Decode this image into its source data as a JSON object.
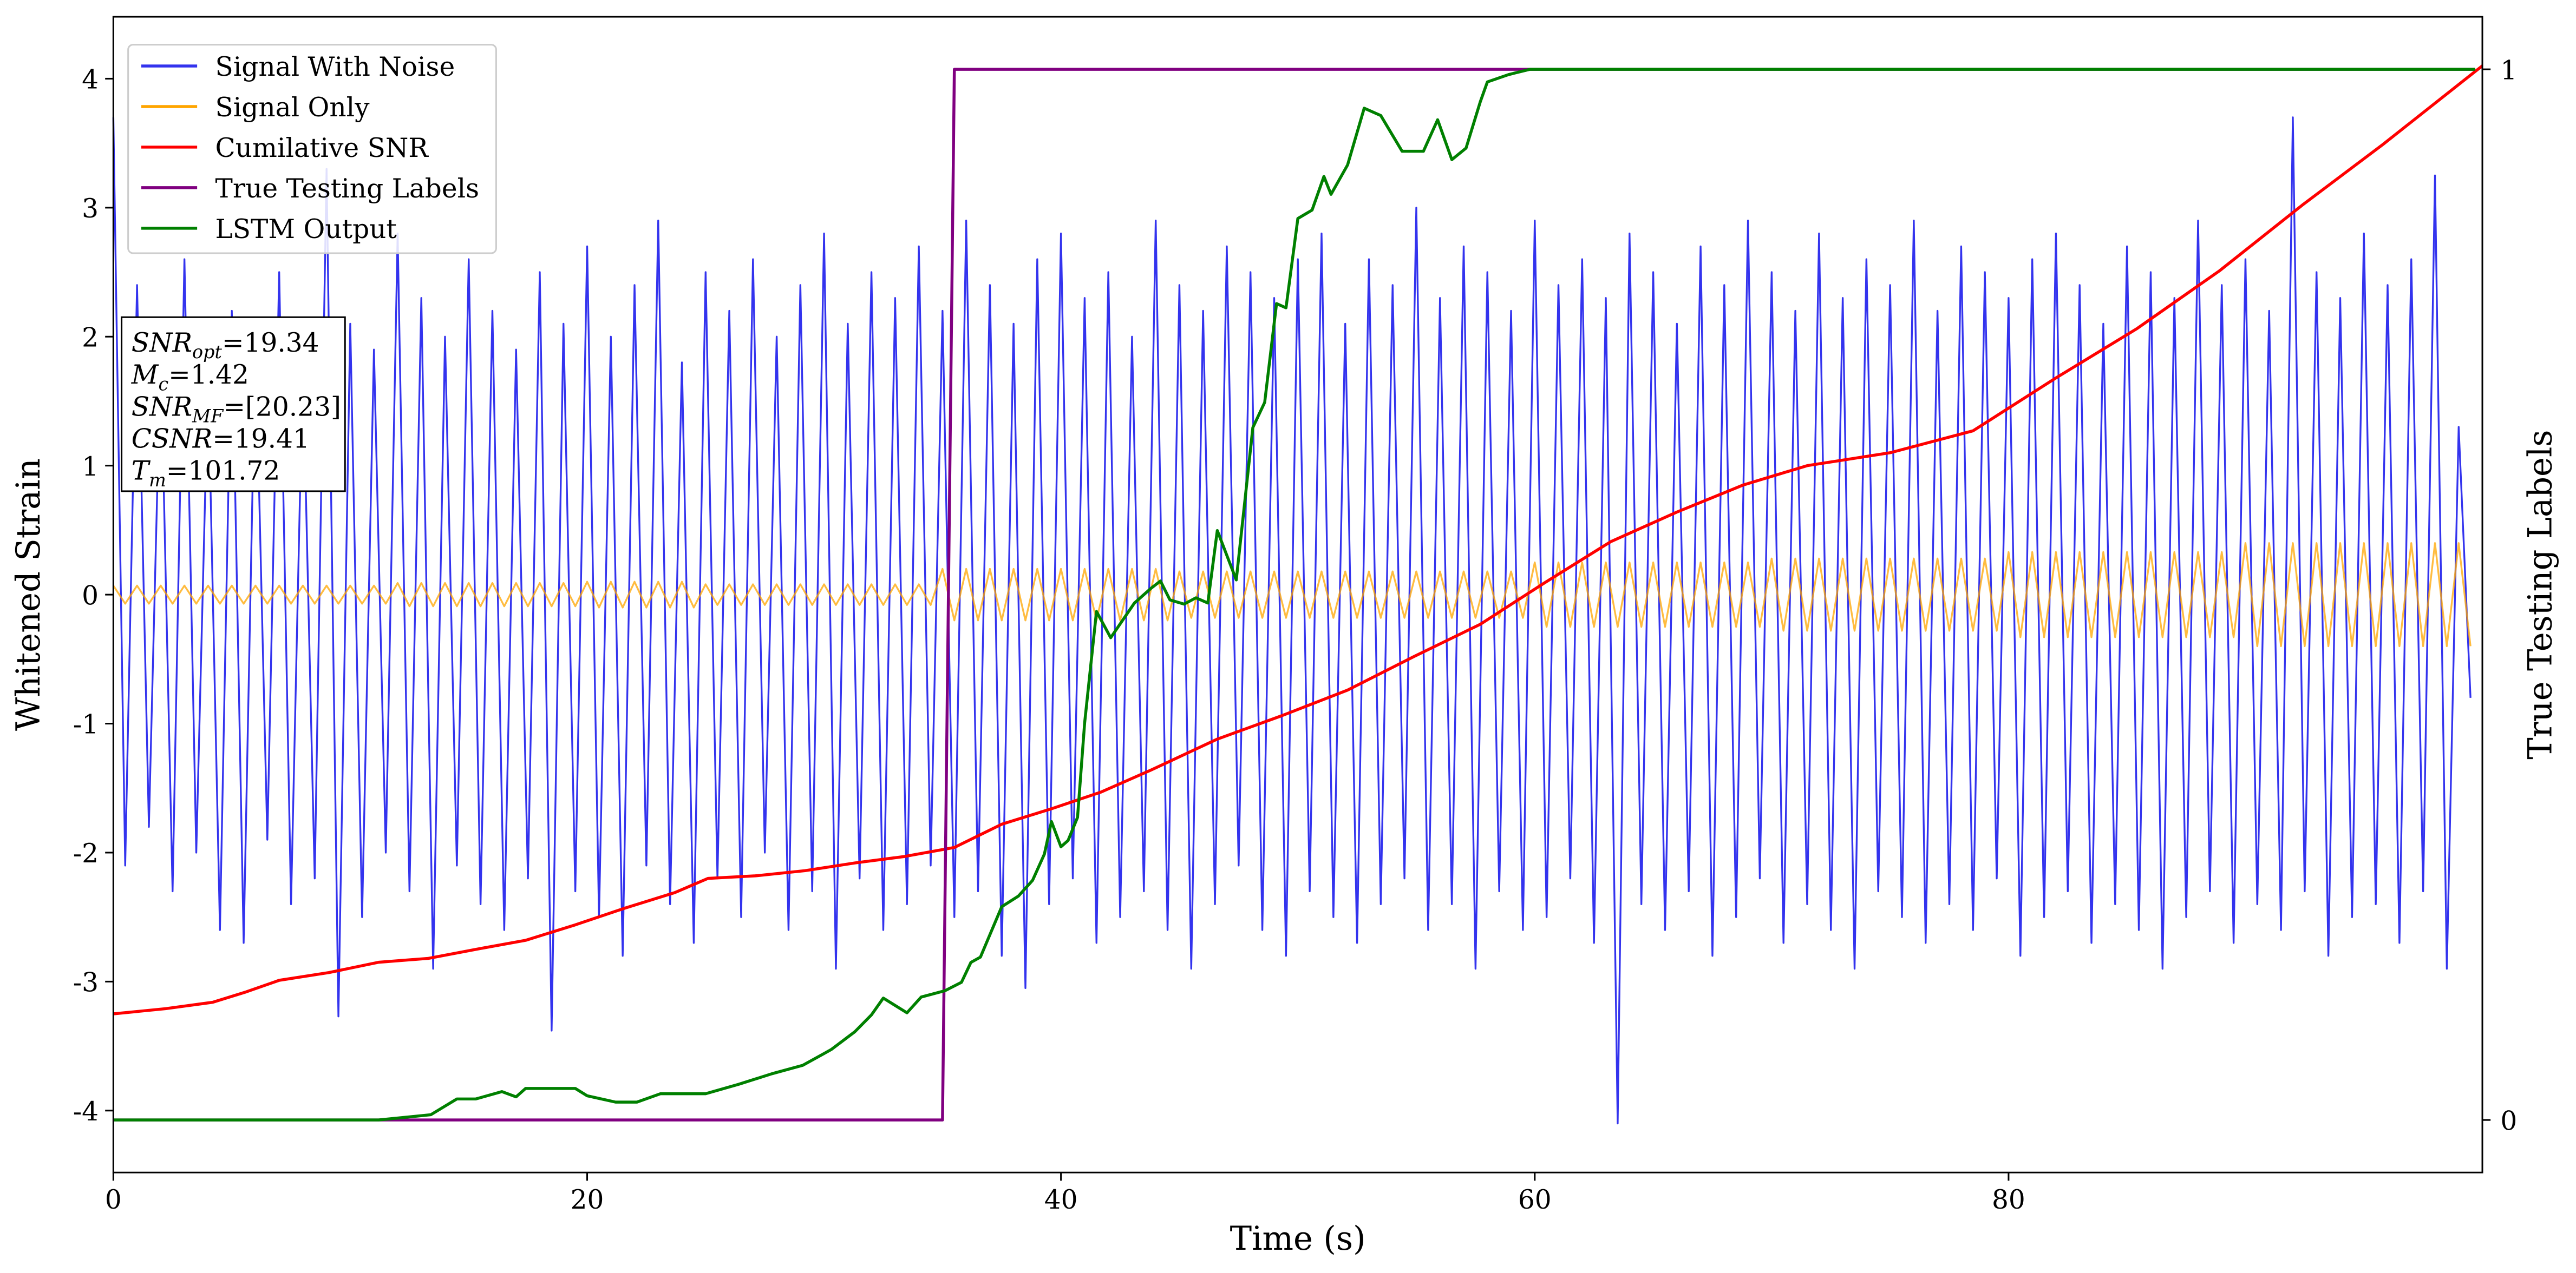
{
  "chart_data": {
    "type": "line",
    "xlabel": "Time (s)",
    "ylabel": "Whitened Strain",
    "y2label": "True Testing Labels",
    "xlim": [
      0,
      100
    ],
    "ylim": [
      -4.48,
      4.48
    ],
    "y2lim": [
      -0.05,
      1.05
    ],
    "xticks": [
      0,
      20,
      40,
      60,
      80
    ],
    "yticks": [
      -4,
      -3,
      -2,
      -1,
      0,
      1,
      2,
      3,
      4
    ],
    "y2ticks": [
      0,
      1
    ],
    "legend": "upper left",
    "annotation": [
      {
        "main": "SNR",
        "sub": "opt",
        "rest": "=19.34"
      },
      {
        "main": "M",
        "sub": "c",
        "rest": "=1.42"
      },
      {
        "main": "SNR",
        "sub": "MF",
        "rest": "=[20.23]"
      },
      {
        "main": "CSNR",
        "sub": null,
        "rest": "=19.41"
      },
      {
        "main": "T",
        "sub": "m",
        "rest": "=101.72"
      }
    ],
    "x": [
      0,
      0.5,
      1,
      1.5,
      2,
      2.5,
      3,
      3.5,
      4,
      4.5,
      5,
      5.5,
      6,
      6.5,
      7,
      7.5,
      8,
      8.5,
      9,
      9.5,
      10,
      10.5,
      11,
      11.5,
      12,
      12.5,
      13,
      13.5,
      14,
      14.5,
      15,
      15.5,
      16,
      16.5,
      17,
      17.5,
      18,
      18.5,
      19,
      19.5,
      20,
      20.5,
      21,
      21.5,
      22,
      22.5,
      23,
      23.5,
      24,
      24.5,
      25,
      25.5,
      26,
      26.5,
      27,
      27.5,
      28,
      28.5,
      29,
      29.5,
      30,
      30.5,
      31,
      31.5,
      32,
      32.5,
      33,
      33.5,
      34,
      34.5,
      35,
      35.5,
      36,
      36.5,
      37,
      37.5,
      38,
      38.5,
      39,
      39.5,
      40,
      40.5,
      41,
      41.5,
      42,
      42.5,
      43,
      43.5,
      44,
      44.5,
      45,
      45.5,
      46,
      46.5,
      47,
      47.5,
      48,
      48.5,
      49,
      49.5,
      50,
      50.5,
      51,
      51.5,
      52,
      52.5,
      53,
      53.5,
      54,
      54.5,
      55,
      55.5,
      56,
      56.5,
      57,
      57.5,
      58,
      58.5,
      59,
      59.5,
      60,
      60.5,
      61,
      61.5,
      62,
      62.5,
      63,
      63.5,
      64,
      64.5,
      65,
      65.5,
      66,
      66.5,
      67,
      67.5,
      68,
      68.5,
      69,
      69.5,
      70,
      70.5,
      71,
      71.5,
      72,
      72.5,
      73,
      73.5,
      74,
      74.5,
      75,
      75.5,
      76,
      76.5,
      77,
      77.5,
      78,
      78.5,
      79,
      79.5,
      80,
      80.5,
      81,
      81.5,
      82,
      82.5,
      83,
      83.5,
      84,
      84.5,
      85,
      85.5,
      86,
      86.5,
      87,
      87.5,
      88,
      88.5,
      89,
      89.5,
      90,
      90.5,
      91,
      91.5,
      92,
      92.5,
      93,
      93.5,
      94,
      94.5,
      95,
      95.5,
      96,
      96.5,
      97,
      97.5,
      98,
      98.5,
      99,
      99.5
    ],
    "series": [
      {
        "name": "Signal With Noise",
        "color": "#3333ee",
        "axis": "y",
        "values": [
          3.7,
          -2.1,
          2.4,
          -1.8,
          1.9,
          -2.3,
          2.6,
          -2.0,
          1.7,
          -2.6,
          2.2,
          -2.7,
          2.0,
          -1.9,
          2.5,
          -2.4,
          1.8,
          -2.2,
          3.3,
          -3.27,
          2.1,
          -2.5,
          1.9,
          -2.0,
          2.8,
          -2.3,
          2.3,
          -2.9,
          2.0,
          -2.1,
          2.6,
          -2.4,
          2.2,
          -2.6,
          1.9,
          -2.2,
          2.5,
          -3.38,
          2.1,
          -2.3,
          2.7,
          -2.5,
          2.0,
          -2.8,
          2.4,
          -2.1,
          2.9,
          -2.4,
          1.8,
          -2.7,
          2.5,
          -2.2,
          2.2,
          -2.5,
          2.6,
          -2.0,
          2.0,
          -2.6,
          2.4,
          -2.3,
          2.8,
          -2.9,
          2.1,
          -2.2,
          2.5,
          -2.6,
          2.3,
          -2.4,
          2.7,
          -2.1,
          2.2,
          -2.5,
          2.9,
          -2.3,
          2.4,
          -2.8,
          2.1,
          -3.05,
          2.6,
          -2.4,
          2.8,
          -2.2,
          2.3,
          -2.7,
          2.5,
          -2.5,
          2.0,
          -2.3,
          2.9,
          -2.6,
          2.4,
          -2.9,
          2.2,
          -2.4,
          2.7,
          -2.1,
          2.5,
          -2.6,
          2.3,
          -2.8,
          2.6,
          -2.3,
          2.8,
          -2.5,
          2.1,
          -2.7,
          2.6,
          -2.4,
          2.4,
          -2.2,
          3.0,
          -2.6,
          2.3,
          -2.4,
          2.7,
          -2.9,
          2.5,
          -2.3,
          2.2,
          -2.6,
          2.9,
          -2.5,
          2.4,
          -2.2,
          2.6,
          -2.7,
          2.3,
          -4.1,
          2.8,
          -2.4,
          2.5,
          -2.6,
          2.1,
          -2.3,
          2.7,
          -2.8,
          2.4,
          -2.5,
          2.9,
          -2.2,
          2.5,
          -2.7,
          2.2,
          -2.4,
          2.8,
          -2.6,
          2.3,
          -2.9,
          2.6,
          -2.3,
          2.4,
          -2.5,
          2.9,
          -2.7,
          2.2,
          -2.4,
          2.7,
          -2.6,
          2.5,
          -2.2,
          2.3,
          -2.8,
          2.6,
          -2.5,
          2.8,
          -2.3,
          2.4,
          -2.7,
          2.1,
          -2.4,
          2.7,
          -2.6,
          2.5,
          -2.9,
          2.3,
          -2.5,
          2.9,
          -2.3,
          2.4,
          -2.7,
          2.6,
          -2.4,
          2.2,
          -2.6,
          3.7,
          -2.3,
          2.5,
          -2.8,
          2.3,
          -2.5,
          2.8,
          -2.4,
          2.4,
          -2.7,
          2.6,
          -2.3,
          3.25,
          -2.9,
          1.3,
          -0.8
        ]
      },
      {
        "name": "Signal Only",
        "color": "#ffa500",
        "axis": "y",
        "values": [
          0.07,
          -0.07,
          0.07,
          -0.07,
          0.07,
          -0.07,
          0.07,
          -0.07,
          0.07,
          -0.07,
          0.07,
          -0.07,
          0.07,
          -0.07,
          0.07,
          -0.07,
          0.07,
          -0.07,
          0.07,
          -0.07,
          0.07,
          -0.07,
          0.07,
          -0.07,
          0.09,
          -0.09,
          0.09,
          -0.09,
          0.09,
          -0.09,
          0.09,
          -0.09,
          0.09,
          -0.09,
          0.09,
          -0.09,
          0.09,
          -0.09,
          0.09,
          -0.09,
          0.1,
          -0.1,
          0.1,
          -0.1,
          0.1,
          -0.1,
          0.1,
          -0.1,
          0.1,
          -0.1,
          0.08,
          -0.08,
          0.08,
          -0.08,
          0.08,
          -0.08,
          0.08,
          -0.08,
          0.08,
          -0.08,
          0.08,
          -0.08,
          0.08,
          -0.08,
          0.08,
          -0.08,
          0.08,
          -0.08,
          0.08,
          -0.08,
          0.2,
          -0.2,
          0.2,
          -0.2,
          0.2,
          -0.2,
          0.2,
          -0.2,
          0.2,
          -0.2,
          0.2,
          -0.2,
          0.2,
          -0.2,
          0.2,
          -0.2,
          0.2,
          -0.2,
          0.2,
          -0.2,
          0.18,
          -0.18,
          0.18,
          -0.18,
          0.18,
          -0.18,
          0.18,
          -0.18,
          0.18,
          -0.18,
          0.18,
          -0.18,
          0.18,
          -0.18,
          0.18,
          -0.18,
          0.18,
          -0.18,
          0.18,
          -0.18,
          0.18,
          -0.18,
          0.18,
          -0.18,
          0.18,
          -0.18,
          0.18,
          -0.18,
          0.18,
          -0.18,
          0.25,
          -0.25,
          0.25,
          -0.25,
          0.25,
          -0.25,
          0.25,
          -0.25,
          0.25,
          -0.25,
          0.25,
          -0.25,
          0.25,
          -0.25,
          0.25,
          -0.25,
          0.25,
          -0.25,
          0.25,
          -0.25,
          0.28,
          -0.28,
          0.28,
          -0.28,
          0.28,
          -0.28,
          0.28,
          -0.28,
          0.28,
          -0.28,
          0.28,
          -0.28,
          0.28,
          -0.28,
          0.28,
          -0.28,
          0.28,
          -0.28,
          0.28,
          -0.28,
          0.33,
          -0.33,
          0.33,
          -0.33,
          0.33,
          -0.33,
          0.33,
          -0.33,
          0.33,
          -0.33,
          0.33,
          -0.33,
          0.33,
          -0.33,
          0.33,
          -0.33,
          0.33,
          -0.33,
          0.33,
          -0.33,
          0.4,
          -0.4,
          0.4,
          -0.4,
          0.4,
          -0.4,
          0.4,
          -0.4,
          0.4,
          -0.4,
          0.4,
          -0.4,
          0.4,
          -0.4,
          0.4,
          -0.4,
          0.4,
          -0.4,
          0.4,
          -0.4
        ]
      },
      {
        "name": "Cumilative SNR",
        "color": "#ff0000",
        "axis": "y",
        "x": [
          0,
          2.2,
          4.2,
          5.6,
          7,
          9.1,
          11.2,
          13.3,
          15.3,
          17.4,
          19.5,
          21.6,
          23.7,
          25.1,
          27.1,
          29.2,
          31.3,
          33.4,
          35.5,
          37.5,
          39.6,
          41.7,
          43.8,
          46.6,
          49.3,
          52.1,
          54.9,
          57.7,
          60.4,
          63.2,
          66,
          68.8,
          71.5,
          75,
          78.5,
          82,
          85.4,
          88.9,
          92.4,
          95.8,
          100
        ],
        "values": [
          -3.25,
          -3.21,
          -3.16,
          -3.08,
          -2.99,
          -2.93,
          -2.85,
          -2.82,
          -2.75,
          -2.68,
          -2.56,
          -2.43,
          -2.31,
          -2.2,
          -2.18,
          -2.14,
          -2.08,
          -2.03,
          -1.96,
          -1.78,
          -1.66,
          -1.53,
          -1.36,
          -1.12,
          -0.94,
          -0.74,
          -0.48,
          -0.23,
          0.09,
          0.41,
          0.64,
          0.85,
          1.0,
          1.1,
          1.27,
          1.68,
          2.06,
          2.51,
          3.02,
          3.49,
          4.1
        ]
      },
      {
        "name": "True Testing Labels",
        "color": "#800080",
        "axis": "y2",
        "x": [
          0,
          35.0,
          35.5,
          99.7
        ],
        "values": [
          0,
          0,
          1,
          1
        ]
      },
      {
        "name": "LSTM Output",
        "color": "#008000",
        "axis": "y2",
        "x": [
          0,
          11.2,
          13.4,
          14.5,
          15.3,
          16.4,
          17,
          17.4,
          18.5,
          19.5,
          20,
          21.2,
          22.1,
          23.1,
          25,
          26.4,
          27.8,
          29.1,
          30.3,
          31.3,
          32,
          32.5,
          33.5,
          34.1,
          35.1,
          35.8,
          36.2,
          36.6,
          37.5,
          38.2,
          38.8,
          39.3,
          39.6,
          40,
          40.3,
          40.7,
          41,
          41.5,
          42.1,
          43.1,
          43.8,
          44.2,
          44.6,
          45.2,
          45.7,
          46.2,
          46.6,
          47.4,
          48.1,
          48.6,
          49.1,
          49.5,
          50,
          50.6,
          51.1,
          51.4,
          52.1,
          52.8,
          53.5,
          54.4,
          55.3,
          55.9,
          56.5,
          57.1,
          57.7,
          58,
          58.9,
          59.8,
          64.6,
          99.7
        ],
        "values": [
          0,
          0,
          0.005,
          0.02,
          0.02,
          0.027,
          0.022,
          0.03,
          0.03,
          0.03,
          0.023,
          0.017,
          0.017,
          0.025,
          0.025,
          0.034,
          0.044,
          0.052,
          0.067,
          0.084,
          0.1,
          0.116,
          0.102,
          0.117,
          0.123,
          0.131,
          0.15,
          0.155,
          0.203,
          0.213,
          0.228,
          0.253,
          0.284,
          0.26,
          0.266,
          0.288,
          0.378,
          0.484,
          0.459,
          0.492,
          0.506,
          0.513,
          0.495,
          0.491,
          0.497,
          0.492,
          0.561,
          0.514,
          0.659,
          0.683,
          0.777,
          0.773,
          0.858,
          0.866,
          0.898,
          0.881,
          0.909,
          0.963,
          0.956,
          0.922,
          0.922,
          0.952,
          0.914,
          0.925,
          0.969,
          0.988,
          0.995,
          1,
          1,
          1
        ]
      }
    ]
  }
}
